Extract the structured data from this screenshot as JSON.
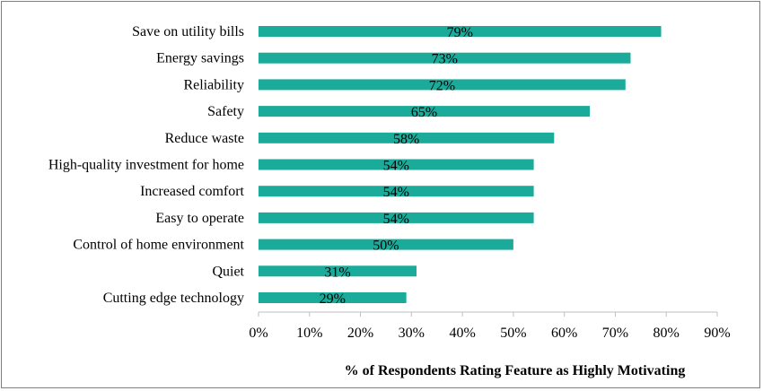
{
  "chart_data": {
    "type": "bar",
    "orientation": "horizontal",
    "categories": [
      "Save on utility bills",
      "Energy savings",
      "Reliability",
      "Safety",
      "Reduce waste",
      "High-quality investment for home",
      "Increased comfort",
      "Easy to operate",
      "Control of home environment",
      "Quiet",
      "Cutting edge technology"
    ],
    "values": [
      79,
      73,
      72,
      65,
      58,
      54,
      54,
      54,
      50,
      31,
      29
    ],
    "data_labels": [
      "79%",
      "73%",
      "72%",
      "65%",
      "58%",
      "54%",
      "54%",
      "54%",
      "50%",
      "31%",
      "29%"
    ],
    "title": "",
    "xlabel": "% of Respondents Rating Feature as Highly Motivating",
    "ylabel": "",
    "xlim": [
      0,
      90
    ],
    "x_ticks": [
      "0%",
      "10%",
      "20%",
      "30%",
      "40%",
      "50%",
      "60%",
      "70%",
      "80%",
      "90%"
    ],
    "grid": false,
    "legend": "none",
    "bar_color": "#1aab9b"
  }
}
